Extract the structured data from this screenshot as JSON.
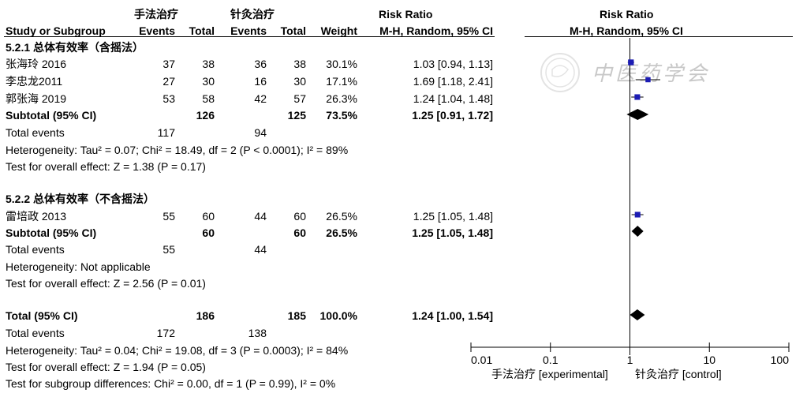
{
  "headers": {
    "exp_group": "手法治疗",
    "ctl_group": "针灸治疗",
    "risk_ratio": "Risk Ratio",
    "risk_ratio_plot": "Risk Ratio",
    "study": "Study or Subgroup",
    "exp_events": "Events",
    "exp_total": "Total",
    "ctl_events": "Events",
    "ctl_total": "Total",
    "weight": "Weight",
    "method": "M-H, Random, 95% CI",
    "method_plot": "M-H, Random, 95% CI"
  },
  "subgroups": [
    {
      "title": "5.2.1 总体有效率（含摇法）",
      "studies": [
        {
          "name": "张海玲 2016",
          "exp_events": "37",
          "exp_total": "38",
          "ctl_events": "36",
          "ctl_total": "38",
          "weight": "30.1%",
          "ci": "1.03 [0.94, 1.13]"
        },
        {
          "name": "李忠龙2011",
          "exp_events": "27",
          "exp_total": "30",
          "ctl_events": "16",
          "ctl_total": "30",
          "weight": "17.1%",
          "ci": "1.69 [1.18, 2.41]"
        },
        {
          "name": "郭张海 2019",
          "exp_events": "53",
          "exp_total": "58",
          "ctl_events": "42",
          "ctl_total": "57",
          "weight": "26.3%",
          "ci": "1.24 [1.04, 1.48]"
        }
      ],
      "subtotal": {
        "label": "Subtotal (95% CI)",
        "exp_total": "126",
        "ctl_total": "125",
        "weight": "73.5%",
        "ci": "1.25 [0.91, 1.72]"
      },
      "events": {
        "label": "Total events",
        "exp": "117",
        "ctl": "94"
      },
      "heterogeneity": "Heterogeneity: Tau² = 0.07; Chi² = 18.49, df = 2 (P < 0.0001); I² = 89%",
      "overall": "Test for overall effect: Z = 1.38 (P = 0.17)"
    },
    {
      "title": "5.2.2 总体有效率（不含摇法）",
      "studies": [
        {
          "name": "雷培政 2013",
          "exp_events": "55",
          "exp_total": "60",
          "ctl_events": "44",
          "ctl_total": "60",
          "weight": "26.5%",
          "ci": "1.25 [1.05, 1.48]"
        }
      ],
      "subtotal": {
        "label": "Subtotal (95% CI)",
        "exp_total": "60",
        "ctl_total": "60",
        "weight": "26.5%",
        "ci": "1.25 [1.05, 1.48]"
      },
      "events": {
        "label": "Total events",
        "exp": "55",
        "ctl": "44"
      },
      "heterogeneity": "Heterogeneity: Not applicable",
      "overall": "Test for overall effect: Z = 2.56 (P = 0.01)"
    }
  ],
  "total": {
    "label": "Total (95% CI)",
    "exp_total": "186",
    "ctl_total": "185",
    "weight": "100.0%",
    "ci": "1.24 [1.00, 1.54]"
  },
  "total_events": {
    "label": "Total events",
    "exp": "172",
    "ctl": "138"
  },
  "total_heterogeneity": "Heterogeneity: Tau² = 0.04; Chi² = 19.08, df = 3 (P = 0.0003); I² = 84%",
  "total_overall": "Test for overall effect: Z = 1.94 (P = 0.05)",
  "subgroup_diff": "Test for subgroup differences: Chi² = 0.00, df = 1 (P = 0.99), I² = 0%",
  "axis": {
    "favours_left": "手法治疗 [experimental]",
    "favours_right": "针灸治疗 [control]"
  },
  "watermark": "中医药学会",
  "colors": {
    "study_marker": "#1c1cb4",
    "diamond": "#000000"
  },
  "chart_data": {
    "type": "forest",
    "xscale": "log",
    "xlim": [
      0.01,
      100
    ],
    "ticks": [
      0.01,
      0.1,
      1,
      10,
      100
    ],
    "tick_labels": [
      "0.01",
      "0.1",
      "1",
      "10",
      "100"
    ],
    "studies": [
      {
        "name": "张海玲 2016",
        "rr": 1.03,
        "lo": 0.94,
        "hi": 1.13,
        "weight": 30.1
      },
      {
        "name": "李忠龙2011",
        "rr": 1.69,
        "lo": 1.18,
        "hi": 2.41,
        "weight": 17.1
      },
      {
        "name": "郭张海 2019",
        "rr": 1.24,
        "lo": 1.04,
        "hi": 1.48,
        "weight": 26.3
      },
      {
        "name": "雷培政 2013",
        "rr": 1.25,
        "lo": 1.05,
        "hi": 1.48,
        "weight": 26.5
      }
    ],
    "summaries": [
      {
        "name": "Subtotal 5.2.1",
        "rr": 1.25,
        "lo": 0.91,
        "hi": 1.72
      },
      {
        "name": "Subtotal 5.2.2",
        "rr": 1.25,
        "lo": 1.05,
        "hi": 1.48
      },
      {
        "name": "Total",
        "rr": 1.24,
        "lo": 1.0,
        "hi": 1.54
      }
    ]
  }
}
